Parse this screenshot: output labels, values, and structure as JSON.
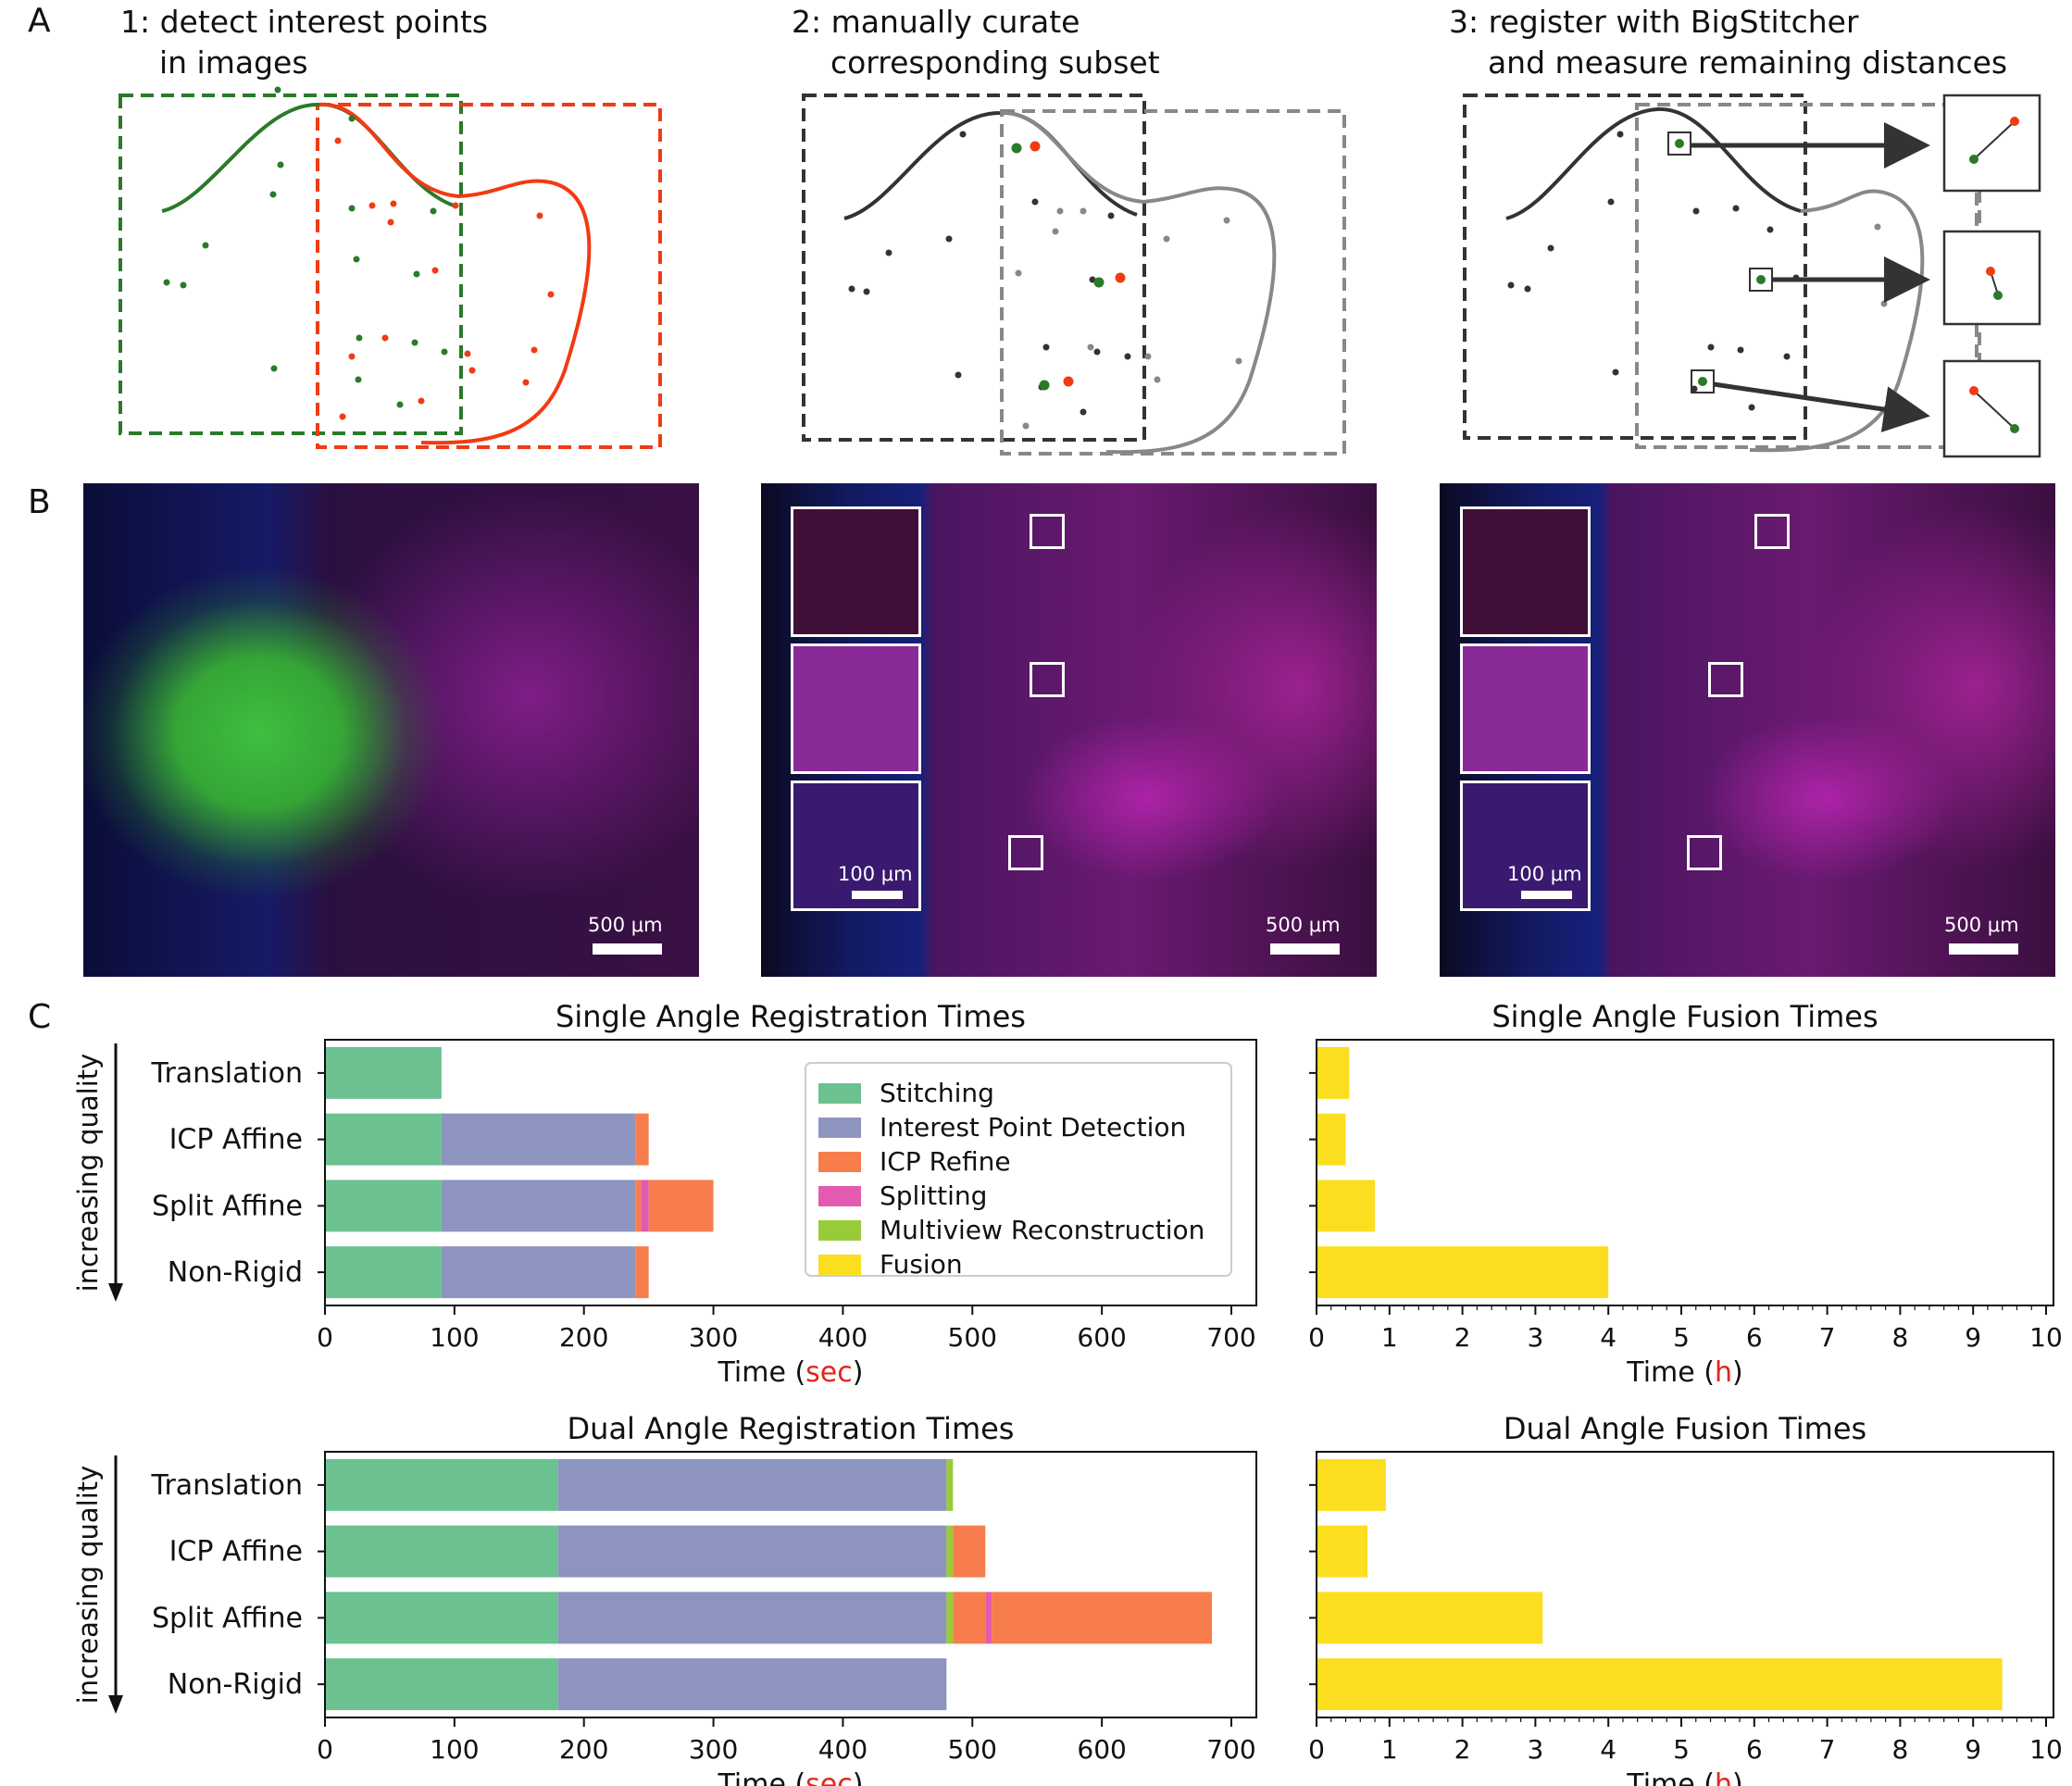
{
  "panels": {
    "a": "A",
    "b": "B",
    "c": "C"
  },
  "steps": [
    "1: detect interest points\n    in images",
    "2: manually curate\n    corresponding subset",
    "3: register with BigStitcher\n    and measure remaining distances"
  ],
  "scalebars": {
    "large": "500 μm",
    "inset": "100 μm"
  },
  "colors": {
    "stitching": "#6cc190",
    "interest": "#8e94c0",
    "icp": "#f87d4c",
    "splitting": "#e25bb1",
    "multiview": "#97cb3a",
    "fusion": "#fbde20"
  },
  "chart_data": [
    {
      "type": "bar",
      "orientation": "horizontal-stacked",
      "title": "Single Angle Registration Times",
      "xlabel_prefix": "Time (",
      "xlabel_unit": "sec",
      "xlabel_suffix": ")",
      "ylabel": "increasing quality",
      "xlim": [
        0,
        700
      ],
      "xticks": [
        0,
        100,
        200,
        300,
        400,
        500,
        600,
        700
      ],
      "categories": [
        "Translation",
        "ICP Affine",
        "Split Affine",
        "Non-Rigid"
      ],
      "series": [
        {
          "name": "Stitching",
          "values": [
            90,
            90,
            90,
            90
          ]
        },
        {
          "name": "Interest Point Detection",
          "values": [
            0,
            150,
            150,
            150
          ]
        },
        {
          "name": "ICP Refine",
          "values": [
            0,
            10,
            4,
            10
          ]
        },
        {
          "name": "Splitting",
          "values": [
            0,
            0,
            6,
            0
          ]
        },
        {
          "name": "ICP Refine",
          "values": [
            0,
            0,
            50,
            0
          ]
        }
      ],
      "legend": [
        "Stitching",
        "Interest Point Detection",
        "ICP Refine",
        "Splitting",
        "Multiview Reconstruction",
        "Fusion"
      ],
      "legend_position": "top-right"
    },
    {
      "type": "bar",
      "orientation": "horizontal",
      "title": "Single Angle Fusion Times",
      "xlabel_prefix": "Time (",
      "xlabel_unit": "h",
      "xlabel_suffix": ")",
      "xlim": [
        0,
        10
      ],
      "xticks": [
        0,
        1,
        2,
        3,
        4,
        5,
        6,
        7,
        8,
        9,
        10
      ],
      "categories": [
        "Translation",
        "ICP Affine",
        "Split Affine",
        "Non-Rigid"
      ],
      "series": [
        {
          "name": "Fusion",
          "values": [
            0.45,
            0.4,
            0.8,
            4.0
          ]
        }
      ]
    },
    {
      "type": "bar",
      "orientation": "horizontal-stacked",
      "title": "Dual Angle Registration Times",
      "xlabel_prefix": "Time (",
      "xlabel_unit": "sec",
      "xlabel_suffix": ")",
      "ylabel": "increasing quality",
      "xlim": [
        0,
        700
      ],
      "xticks": [
        0,
        100,
        200,
        300,
        400,
        500,
        600,
        700
      ],
      "categories": [
        "Translation",
        "ICP Affine",
        "Split Affine",
        "Non-Rigid"
      ],
      "series": [
        {
          "name": "Stitching",
          "values": [
            180,
            180,
            180,
            180
          ]
        },
        {
          "name": "Interest Point Detection",
          "values": [
            300,
            300,
            300,
            300
          ]
        },
        {
          "name": "Multiview Reconstruction",
          "values": [
            5,
            5,
            5,
            0
          ]
        },
        {
          "name": "ICP Refine",
          "values": [
            0,
            25,
            25,
            0
          ]
        },
        {
          "name": "Splitting",
          "values": [
            0,
            0,
            5,
            0
          ]
        },
        {
          "name": "ICP Refine",
          "values": [
            0,
            0,
            170,
            0
          ]
        }
      ]
    },
    {
      "type": "bar",
      "orientation": "horizontal",
      "title": "Dual Angle Fusion Times",
      "xlabel_prefix": "Time (",
      "xlabel_unit": "h",
      "xlabel_suffix": ")",
      "xlim": [
        0,
        10
      ],
      "xticks": [
        0,
        1,
        2,
        3,
        4,
        5,
        6,
        7,
        8,
        9,
        10
      ],
      "categories": [
        "Translation",
        "ICP Affine",
        "Split Affine",
        "Non-Rigid"
      ],
      "series": [
        {
          "name": "Fusion",
          "values": [
            0.95,
            0.7,
            3.1,
            9.4
          ]
        }
      ]
    }
  ]
}
